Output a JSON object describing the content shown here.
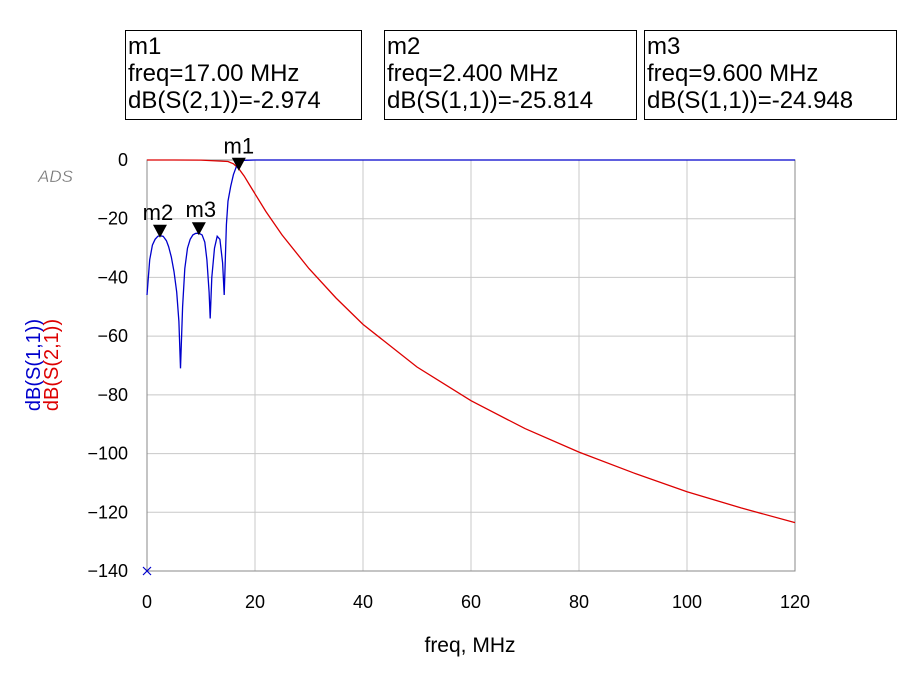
{
  "markers": [
    {
      "name": "m1",
      "freq_text": "freq=17.00 MHz",
      "value_text": "dB(S(2,1))=-2.974",
      "freq": 17.0,
      "value": -2.974
    },
    {
      "name": "m2",
      "freq_text": "freq=2.400 MHz",
      "value_text": "dB(S(1,1))=-25.814",
      "freq": 2.4,
      "value": -25.814
    },
    {
      "name": "m3",
      "freq_text": "freq=9.600 MHz",
      "value_text": "dB(S(1,1))=-24.948",
      "freq": 9.6,
      "value": -24.948
    }
  ],
  "chart_data": {
    "type": "line",
    "watermark": "ADS",
    "xlabel": "freq, MHz",
    "ylabel_series": [
      "dB(S(1,1))",
      "dB(S(2,1))"
    ],
    "xlim": [
      0,
      120
    ],
    "ylim": [
      -140,
      0
    ],
    "xticks": [
      0,
      20,
      40,
      60,
      80,
      100,
      120
    ],
    "yticks": [
      0,
      -20,
      -40,
      -60,
      -80,
      -100,
      -120,
      -140
    ],
    "grid": true,
    "colors": {
      "S11": "#0000cc",
      "S21": "#dd0000"
    },
    "series": [
      {
        "name": "dB(S(1,1))",
        "color": "#0000cc",
        "x": [
          0,
          0.5,
          1,
          1.5,
          2,
          2.4,
          3,
          3.6,
          4,
          4.5,
          5,
          5.5,
          5.9,
          6.2,
          6.6,
          7,
          7.5,
          8,
          8.5,
          9,
          9.6,
          10.2,
          10.7,
          11.1,
          11.5,
          11.7,
          12,
          12.5,
          13,
          13.5,
          14,
          14.3,
          14.7,
          15,
          15.5,
          16,
          16.5,
          17,
          17.5,
          18,
          20,
          40,
          60,
          80,
          100,
          120
        ],
        "y": [
          -46,
          -34,
          -29,
          -27,
          -26,
          -25.8,
          -26,
          -27.5,
          -29.5,
          -33,
          -38,
          -45,
          -55,
          -71,
          -50,
          -37,
          -30,
          -27,
          -25.5,
          -25,
          -24.95,
          -25.5,
          -28,
          -34,
          -45,
          -54,
          -40,
          -30,
          -26,
          -27,
          -35,
          -46,
          -22,
          -14,
          -9,
          -5,
          -2.5,
          -1,
          -0.3,
          -0.1,
          0,
          0,
          0,
          0,
          0,
          0
        ]
      },
      {
        "name": "dB(S(2,1))",
        "color": "#dd0000",
        "x": [
          0,
          5,
          10,
          15,
          16,
          17,
          18,
          19,
          20,
          22,
          25,
          30,
          35,
          40,
          50,
          60,
          70,
          80,
          90,
          100,
          110,
          120
        ],
        "y": [
          0,
          0,
          -0.05,
          -0.5,
          -1.3,
          -2.974,
          -5.5,
          -8.5,
          -11.5,
          -17.5,
          -25.5,
          -37,
          -47,
          -56,
          -70.5,
          -82,
          -91.5,
          -99.5,
          -106.5,
          -113,
          -118.5,
          -123.5
        ]
      }
    ]
  }
}
